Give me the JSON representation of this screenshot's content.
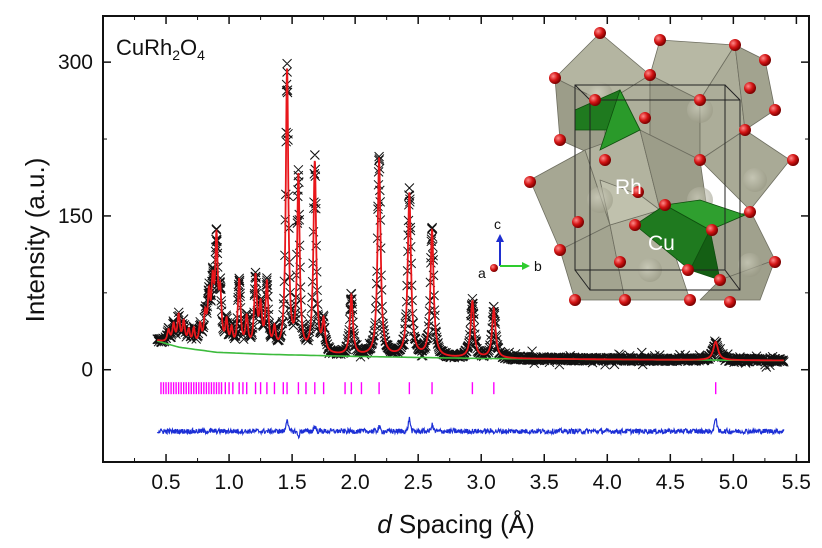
{
  "chart_data": {
    "type": "line",
    "sample_label": {
      "main": "CuRh",
      "sub1": "2",
      "mid": "O",
      "sub2": "4"
    },
    "xlabel": {
      "italic": "d",
      "rest": " Spacing (Å)"
    },
    "ylabel": "Intensity (a.u.)",
    "xlim": [
      0.0,
      5.6
    ],
    "ylim": [
      -90,
      345
    ],
    "xticks": [
      0.5,
      1.0,
      1.5,
      2.0,
      2.5,
      3.0,
      3.5,
      4.0,
      4.5,
      5.0,
      5.5
    ],
    "xtick_labels": [
      "0.5",
      "1.0",
      "1.5",
      "2.0",
      "2.5",
      "3.0",
      "3.5",
      "4.0",
      "4.5",
      "5.0",
      "5.5"
    ],
    "yticks": [
      0,
      150,
      300
    ],
    "ytick_labels": [
      "0",
      "150",
      "300"
    ],
    "x_range": [
      0.43,
      5.4
    ],
    "background": {
      "description_free": true,
      "points": [
        [
          0.43,
          28
        ],
        [
          0.6,
          22
        ],
        [
          0.9,
          17
        ],
        [
          1.3,
          15
        ],
        [
          2.0,
          13
        ],
        [
          3.0,
          11
        ],
        [
          4.0,
          10
        ],
        [
          5.4,
          9
        ]
      ]
    },
    "peaks": [
      {
        "d": 0.52,
        "h": 12,
        "w": 0.012
      },
      {
        "d": 0.56,
        "h": 18,
        "w": 0.012
      },
      {
        "d": 0.6,
        "h": 28,
        "w": 0.012
      },
      {
        "d": 0.64,
        "h": 22,
        "w": 0.012
      },
      {
        "d": 0.68,
        "h": 14,
        "w": 0.012
      },
      {
        "d": 0.72,
        "h": 16,
        "w": 0.012
      },
      {
        "d": 0.77,
        "h": 20,
        "w": 0.012
      },
      {
        "d": 0.81,
        "h": 28,
        "w": 0.012
      },
      {
        "d": 0.84,
        "h": 45,
        "w": 0.012
      },
      {
        "d": 0.87,
        "h": 55,
        "w": 0.012
      },
      {
        "d": 0.9,
        "h": 100,
        "w": 0.012
      },
      {
        "d": 0.93,
        "h": 48,
        "w": 0.012
      },
      {
        "d": 0.98,
        "h": 25,
        "w": 0.012
      },
      {
        "d": 1.02,
        "h": 18,
        "w": 0.012
      },
      {
        "d": 1.08,
        "h": 68,
        "w": 0.013
      },
      {
        "d": 1.14,
        "h": 30,
        "w": 0.013
      },
      {
        "d": 1.21,
        "h": 70,
        "w": 0.013
      },
      {
        "d": 1.25,
        "h": 40,
        "w": 0.013
      },
      {
        "d": 1.3,
        "h": 65,
        "w": 0.013
      },
      {
        "d": 1.36,
        "h": 20,
        "w": 0.013
      },
      {
        "d": 1.46,
        "h": 275,
        "w": 0.012
      },
      {
        "d": 1.55,
        "h": 170,
        "w": 0.012
      },
      {
        "d": 1.68,
        "h": 186,
        "w": 0.013
      },
      {
        "d": 1.75,
        "h": 30,
        "w": 0.013
      },
      {
        "d": 1.97,
        "h": 58,
        "w": 0.014
      },
      {
        "d": 2.19,
        "h": 193,
        "w": 0.014
      },
      {
        "d": 2.43,
        "h": 159,
        "w": 0.015
      },
      {
        "d": 2.61,
        "h": 123,
        "w": 0.015
      },
      {
        "d": 2.93,
        "h": 55,
        "w": 0.016
      },
      {
        "d": 3.1,
        "h": 48,
        "w": 0.016
      },
      {
        "d": 4.86,
        "h": 18,
        "w": 0.022
      }
    ],
    "reflection_ticks": [
      0.46,
      0.48,
      0.5,
      0.52,
      0.54,
      0.56,
      0.58,
      0.6,
      0.62,
      0.64,
      0.66,
      0.68,
      0.7,
      0.72,
      0.74,
      0.76,
      0.78,
      0.8,
      0.82,
      0.84,
      0.86,
      0.88,
      0.9,
      0.92,
      0.94,
      0.97,
      1.0,
      1.03,
      1.08,
      1.11,
      1.14,
      1.21,
      1.25,
      1.3,
      1.36,
      1.43,
      1.46,
      1.55,
      1.61,
      1.68,
      1.75,
      1.92,
      1.97,
      2.05,
      2.19,
      2.43,
      2.61,
      2.93,
      3.1,
      4.86
    ],
    "reflection_tick_y": -18,
    "difference_offset": -60,
    "difference_spikes": [
      {
        "d": 1.46,
        "v": 12
      },
      {
        "d": 1.55,
        "v": -5
      },
      {
        "d": 1.68,
        "v": 5
      },
      {
        "d": 2.19,
        "v": 4
      },
      {
        "d": 2.43,
        "v": 12
      },
      {
        "d": 2.61,
        "v": 6
      },
      {
        "d": 4.86,
        "v": 14
      }
    ],
    "series": [
      {
        "name": "",
        "role": "observed",
        "marker": "×",
        "color": "#111111"
      },
      {
        "name": "",
        "role": "calculated",
        "color": "#e8161b"
      },
      {
        "name": "",
        "role": "background",
        "color": "#3dbb3d"
      },
      {
        "name": "",
        "role": "reflections",
        "color": "#ff00ff"
      },
      {
        "name": "",
        "role": "difference",
        "color": "#1c2fd6"
      }
    ],
    "grid": false,
    "legend": "none"
  },
  "inset": {
    "atom_labels": {
      "rh": "Rh",
      "cu": "Cu"
    },
    "axes_labels": {
      "a": "a",
      "b": "b",
      "c": "c"
    },
    "colors": {
      "octahedron": "#a7a894",
      "tetrahedron": "#1f7a1f",
      "oxygen": "#d41515",
      "b_axis": "#2ecc2e",
      "c_axis": "#1f2fd0"
    }
  }
}
